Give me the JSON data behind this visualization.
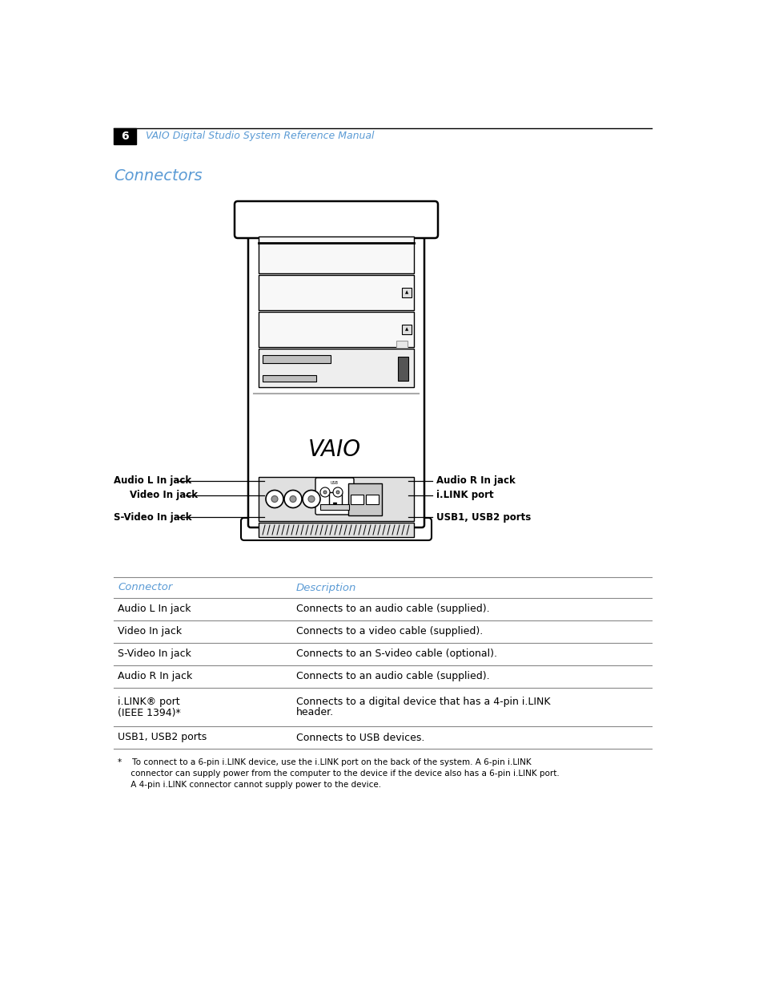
{
  "page_bg": "#ffffff",
  "header_bar_color": "#000000",
  "header_number": "6",
  "header_title": "VAIO Digital Studio System Reference Manual",
  "header_title_color": "#5b9bd5",
  "section_title": "Connectors",
  "section_title_color": "#5b9bd5",
  "left_labels": [
    "Audio L In jack",
    "Video In jack",
    "S-Video In jack"
  ],
  "right_labels": [
    "Audio R In jack",
    "i.LINK port",
    "USB1, USB2 ports"
  ],
  "table_header": [
    "Connector",
    "Description"
  ],
  "table_header_color": "#5b9bd5",
  "table_rows": [
    [
      "Audio L In jack",
      "Connects to an audio cable (supplied)."
    ],
    [
      "Video In jack",
      "Connects to a video cable (supplied)."
    ],
    [
      "S-Video In jack",
      "Connects to an S-video cable (optional)."
    ],
    [
      "Audio R In jack",
      "Connects to an audio cable (supplied)."
    ],
    [
      "i.LINK® port\n(IEEE 1394)*",
      "Connects to a digital device that has a 4-pin i.LINK\nheader."
    ],
    [
      "USB1, USB2 ports",
      "Connects to USB devices."
    ]
  ],
  "footnote_lines": [
    "*    To connect to a 6-pin i.LINK device, use the i.LINK port on the back of the system. A 6-pin i.LINK",
    "     connector can supply power from the computer to the device if the device also has a 6-pin i.LINK port.",
    "     A 4-pin i.LINK connector cannot supply power to the device."
  ]
}
